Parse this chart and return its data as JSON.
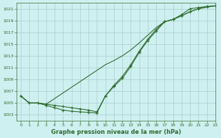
{
  "title": "Graphe pression niveau de la mer (hPa)",
  "bg_color": "#cff0f0",
  "grid_color": "#a8cccc",
  "line_color": "#2d6a2d",
  "xlim": [
    -0.5,
    23
  ],
  "ylim": [
    1002,
    1022
  ],
  "yticks": [
    1003,
    1005,
    1007,
    1009,
    1011,
    1013,
    1015,
    1017,
    1019,
    1021
  ],
  "xticks": [
    0,
    1,
    2,
    3,
    4,
    5,
    6,
    7,
    8,
    9,
    10,
    11,
    12,
    13,
    14,
    15,
    16,
    17,
    18,
    19,
    20,
    21,
    22,
    23
  ],
  "series1_x": [
    0,
    1,
    2,
    3,
    4,
    5,
    6,
    7,
    8,
    9,
    10,
    11,
    12,
    13,
    14,
    15,
    16,
    17,
    18,
    19,
    20,
    21,
    22,
    23
  ],
  "series1_y": [
    1006.2,
    1005.0,
    1005.0,
    1004.6,
    1004.2,
    1003.8,
    1003.6,
    1003.5,
    1003.4,
    1003.3,
    1006.2,
    1007.8,
    1009.2,
    1011.2,
    1013.6,
    1015.6,
    1017.2,
    1018.8,
    1019.2,
    1020.0,
    1021.0,
    1021.2,
    1021.4,
    1021.5
  ],
  "series2_x": [
    0,
    1,
    2,
    3,
    10,
    11,
    12,
    13,
    14,
    15,
    16,
    17,
    18,
    19,
    20,
    21,
    22,
    23
  ],
  "series2_y": [
    1006.2,
    1005.0,
    1005.0,
    1004.8,
    1011.5,
    1012.2,
    1013.0,
    1014.0,
    1015.2,
    1016.5,
    1017.8,
    1018.8,
    1019.2,
    1019.8,
    1020.5,
    1021.0,
    1021.3,
    1021.5
  ],
  "series3_x": [
    0,
    1,
    2,
    3,
    4,
    5,
    6,
    7,
    8,
    9,
    10,
    11,
    12,
    13,
    14,
    15,
    16,
    17,
    18,
    19,
    20,
    21,
    22,
    23
  ],
  "series3_y": [
    1006.2,
    1005.0,
    1005.0,
    1004.8,
    1004.6,
    1004.4,
    1004.2,
    1004.0,
    1003.8,
    1003.5,
    1006.2,
    1008.0,
    1009.5,
    1011.5,
    1013.8,
    1015.8,
    1017.5,
    1018.8,
    1019.2,
    1019.8,
    1020.5,
    1021.0,
    1021.3,
    1021.5
  ]
}
